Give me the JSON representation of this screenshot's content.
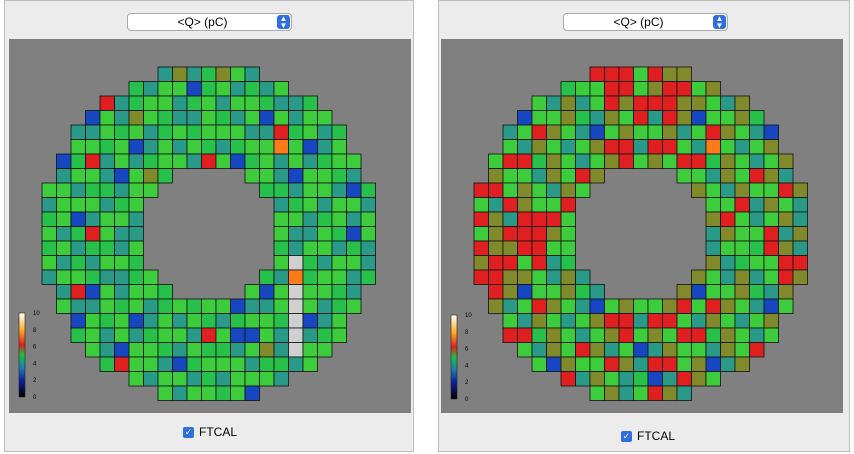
{
  "panels": [
    {
      "id": "left",
      "selector": {
        "label": "<Q> (pC)"
      },
      "checkbox": {
        "label": "FTCAL",
        "checked": true
      },
      "colorbar": {
        "ticks": [
          "0",
          "2",
          "4",
          "6",
          "8",
          "10"
        ]
      },
      "chart_data": {
        "type": "heatmap",
        "grid_size": 23,
        "min": 0,
        "max": 10,
        "pattern_rows": [
          "abcaacbbcaca",
          "bcacbbacbbca",
          "cbbaccabbcab",
          "acbdbcbbaccb",
          "bbccbabcabab",
          "cabbabdcbcba",
          "bdabcbcabbce",
          "acbbcdbbacba",
          "bbcaacbbcdab",
          "cbbbcabcbbca",
          "abdcbbcabcbb",
          "bcabbccbadbc"
        ],
        "palette": {
          "a": "#26c04a",
          "b": "#3ccc3c",
          "c": "#2a9a88",
          "d": "#1646c0",
          "e": "#e02020",
          "f": "#808a2a",
          "g": "#ff7a1a",
          "h": "#d0d0d0"
        },
        "overrides": {
          "0,9": "f",
          "0,12": "f",
          "1,10": "d",
          "2,4": "e",
          "4,16": "e",
          "5,16": "g",
          "9,7": "d",
          "8,12": "d",
          "11,3": "e",
          "13,17": "h",
          "14,17": "g",
          "15,17": "h",
          "16,17": "h",
          "17,17": "h",
          "18,17": "h",
          "19,17": "h",
          "20,5": "e",
          "21,5": "e",
          "10,2": "d",
          "15,2": "e",
          "17,2": "d",
          "6,3": "e",
          "3,6": "f",
          "7,7": "f",
          "16,13": "d",
          "18,14": "d",
          "19,15": "f"
        }
      }
    },
    {
      "id": "right",
      "selector": {
        "label": "<Q> (pC)"
      },
      "checkbox": {
        "label": "FTCAL",
        "checked": true
      },
      "colorbar": {
        "ticks": [
          "0",
          "2",
          "4",
          "6",
          "8",
          "10"
        ]
      },
      "chart_data": {
        "type": "heatmap",
        "grid_size": 23,
        "min": 0,
        "max": 10,
        "pattern_rows": [
          "effbcbbaefcb",
          "feebfcabbeeb",
          "eeffbcfcbefe",
          "cefdbbfacfbe",
          "bfcbefbcdbfb",
          "eebcfbcbfeec",
          "fbeeafbcbfeb",
          "cfbbcfbefcbd",
          "eebfbcfbbefc",
          "bcefbbecfbca",
          "efcbfebcbfcb",
          "bfebcfbbecfb"
        ],
        "palette": {
          "a": "#26c04a",
          "b": "#3ccc3c",
          "c": "#2a9a88",
          "d": "#1646c0",
          "e": "#e02020",
          "f": "#808a2a",
          "g": "#ff7a1a",
          "h": "#d0d0d0"
        },
        "overrides": {
          "0,9": "e",
          "0,10": "e",
          "5,16": "g",
          "7,12": "d",
          "9,14": "d",
          "11,7": "e",
          "11,8": "e",
          "16,14": "e",
          "20,5": "d",
          "20,16": "d",
          "21,6": "e",
          "21,12": "d",
          "10,3": "e",
          "11,3": "e",
          "12,3": "e",
          "10,4": "e",
          "11,4": "e",
          "12,4": "e",
          "13,4": "e"
        }
      }
    }
  ]
}
